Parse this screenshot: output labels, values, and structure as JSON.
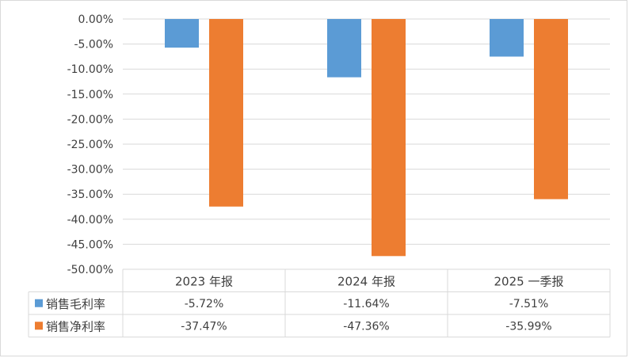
{
  "chart_data": {
    "type": "bar",
    "categories": [
      "2023 年报",
      "2024 年报",
      "2025 一季报"
    ],
    "series": [
      {
        "name": "销售毛利率",
        "values": [
          -5.72,
          -11.64,
          -7.51
        ],
        "labels": [
          "-5.72%",
          "-11.64%",
          "-7.51%"
        ],
        "color": "#5b9bd5"
      },
      {
        "name": "销售净利率",
        "values": [
          -37.47,
          -47.36,
          -35.99
        ],
        "labels": [
          "-37.47%",
          "-47.36%",
          "-35.99%"
        ],
        "color": "#ed7d31"
      }
    ],
    "ylim": [
      -50,
      0
    ],
    "ytick_step": 5,
    "ytick_labels": [
      "0.00%",
      "-5.00%",
      "-10.00%",
      "-15.00%",
      "-20.00%",
      "-25.00%",
      "-30.00%",
      "-35.00%",
      "-40.00%",
      "-45.00%",
      "-50.00%"
    ],
    "grid": true,
    "legend": "data-table",
    "grid_color": "#d9d9d9"
  }
}
